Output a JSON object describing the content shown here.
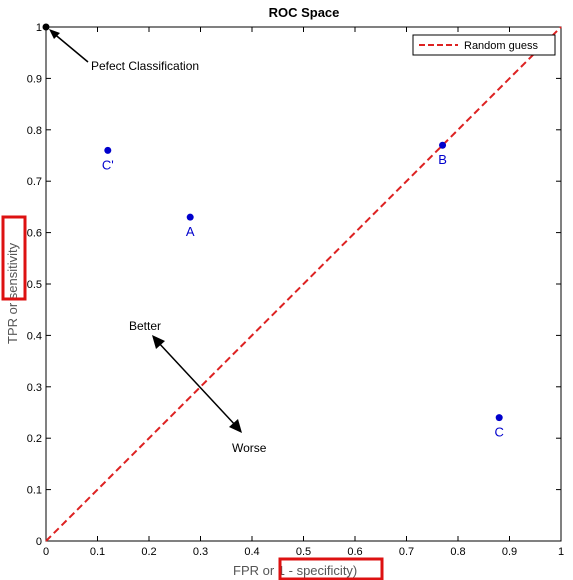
{
  "chart_data": {
    "type": "scatter",
    "title": "ROC Space",
    "xlabel_prefix": "FPR or ",
    "xlabel_highlight": "1 - specificity)",
    "ylabel_prefix": "TPR or ",
    "ylabel_highlight": "sensitivity",
    "xlim": [
      0,
      1
    ],
    "ylim": [
      0,
      1
    ],
    "xticks": [
      0,
      0.1,
      0.2,
      0.3,
      0.4,
      0.5,
      0.6,
      0.7,
      0.8,
      0.9,
      1
    ],
    "yticks": [
      0,
      0.1,
      0.2,
      0.3,
      0.4,
      0.5,
      0.6,
      0.7,
      0.8,
      0.9,
      1
    ],
    "xtick_labels": [
      "0",
      "0.1",
      "0.2",
      "0.3",
      "0.4",
      "0.5",
      "0.6",
      "0.7",
      "0.8",
      "0.9",
      "1"
    ],
    "ytick_labels": [
      "0",
      "0.1",
      "0.2",
      "0.3",
      "0.4",
      "0.5",
      "0.6",
      "0.7",
      "0.8",
      "0.9",
      "1"
    ],
    "grid": false,
    "legend": {
      "placement": "top-right",
      "entries": [
        "Random guess"
      ]
    },
    "reference_line": {
      "x": [
        0,
        1
      ],
      "y": [
        0,
        1
      ],
      "color": "#dd2222",
      "style": "dashed"
    },
    "points": [
      {
        "label": "C'",
        "x": 0.12,
        "y": 0.76
      },
      {
        "label": "A",
        "x": 0.28,
        "y": 0.63
      },
      {
        "label": "B",
        "x": 0.77,
        "y": 0.77
      },
      {
        "label": "C",
        "x": 0.88,
        "y": 0.24
      }
    ],
    "perfect_point": {
      "x": 0,
      "y": 1
    },
    "annotations": {
      "perfect": "Pefect Classification",
      "better": "Better",
      "worse": "Worse"
    },
    "colors": {
      "points": "#0000cc",
      "reference": "#dd2222",
      "highlight_box": "#dd1111",
      "perfect_point": "#000000"
    }
  }
}
